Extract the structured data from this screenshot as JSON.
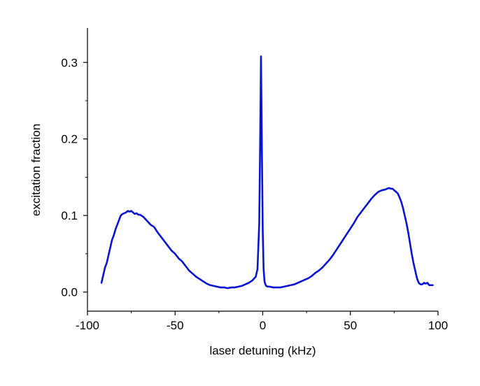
{
  "chart_data": {
    "type": "line",
    "xlabel": "laser detuning (kHz)",
    "ylabel": "excitation fraction",
    "xlim": [
      -100,
      100
    ],
    "ylim": [
      -0.025,
      0.345
    ],
    "xticks": [
      -100,
      -50,
      0,
      50,
      100
    ],
    "xtick_labels": [
      "-100",
      "-50",
      "0",
      "50",
      "100"
    ],
    "yticks": [
      0.0,
      0.1,
      0.2,
      0.3
    ],
    "ytick_labels": [
      "0.0",
      "0.1",
      "0.2",
      "0.3"
    ],
    "grid": false,
    "line_color": "#0a14d6",
    "series": [
      {
        "x": [
          -92,
          -91,
          -90,
          -89,
          -88,
          -87,
          -86,
          -85,
          -84,
          -83,
          -82,
          -81,
          -80,
          -79,
          -78,
          -77,
          -76,
          -75,
          -74,
          -73,
          -72,
          -71,
          -70,
          -68,
          -66,
          -64,
          -62,
          -60,
          -58,
          -56,
          -54,
          -52,
          -50,
          -48,
          -46,
          -44,
          -42,
          -40,
          -38,
          -36,
          -34,
          -32,
          -30,
          -28,
          -26,
          -24,
          -22,
          -20,
          -18,
          -16,
          -14,
          -12,
          -10,
          -8,
          -6,
          -4,
          -3,
          -2,
          -1.5,
          -1,
          -0.5,
          0,
          0.5,
          1,
          1.5,
          2,
          3,
          4,
          6,
          8,
          10,
          12,
          14,
          16,
          18,
          20,
          22,
          24,
          26,
          28,
          30,
          32,
          34,
          36,
          38,
          40,
          42,
          44,
          46,
          48,
          50,
          52,
          54,
          56,
          58,
          60,
          62,
          64,
          66,
          68,
          70,
          71,
          72,
          73,
          74,
          75,
          76,
          77,
          78,
          79,
          80,
          81,
          82,
          83,
          84,
          85,
          86,
          87,
          88,
          89,
          90,
          91,
          92,
          93,
          94,
          95,
          96,
          97
        ],
        "y": [
          0.012,
          0.022,
          0.032,
          0.038,
          0.048,
          0.058,
          0.068,
          0.074,
          0.082,
          0.088,
          0.094,
          0.1,
          0.102,
          0.103,
          0.104,
          0.106,
          0.105,
          0.106,
          0.104,
          0.102,
          0.103,
          0.101,
          0.101,
          0.098,
          0.093,
          0.088,
          0.085,
          0.078,
          0.072,
          0.066,
          0.06,
          0.054,
          0.05,
          0.044,
          0.04,
          0.034,
          0.028,
          0.024,
          0.02,
          0.017,
          0.014,
          0.011,
          0.009,
          0.008,
          0.007,
          0.006,
          0.006,
          0.005,
          0.006,
          0.006,
          0.007,
          0.008,
          0.01,
          0.012,
          0.015,
          0.02,
          0.03,
          0.09,
          0.19,
          0.308,
          0.19,
          0.08,
          0.03,
          0.014,
          0.01,
          0.008,
          0.007,
          0.007,
          0.006,
          0.006,
          0.006,
          0.007,
          0.008,
          0.009,
          0.01,
          0.012,
          0.014,
          0.016,
          0.018,
          0.021,
          0.025,
          0.028,
          0.032,
          0.037,
          0.042,
          0.048,
          0.055,
          0.062,
          0.069,
          0.076,
          0.083,
          0.09,
          0.098,
          0.104,
          0.11,
          0.116,
          0.122,
          0.127,
          0.131,
          0.133,
          0.134,
          0.135,
          0.136,
          0.135,
          0.135,
          0.133,
          0.131,
          0.129,
          0.124,
          0.118,
          0.11,
          0.1,
          0.09,
          0.078,
          0.064,
          0.05,
          0.038,
          0.028,
          0.018,
          0.012,
          0.01,
          0.01,
          0.012,
          0.011,
          0.012,
          0.009,
          0.009,
          0.009
        ]
      }
    ]
  }
}
